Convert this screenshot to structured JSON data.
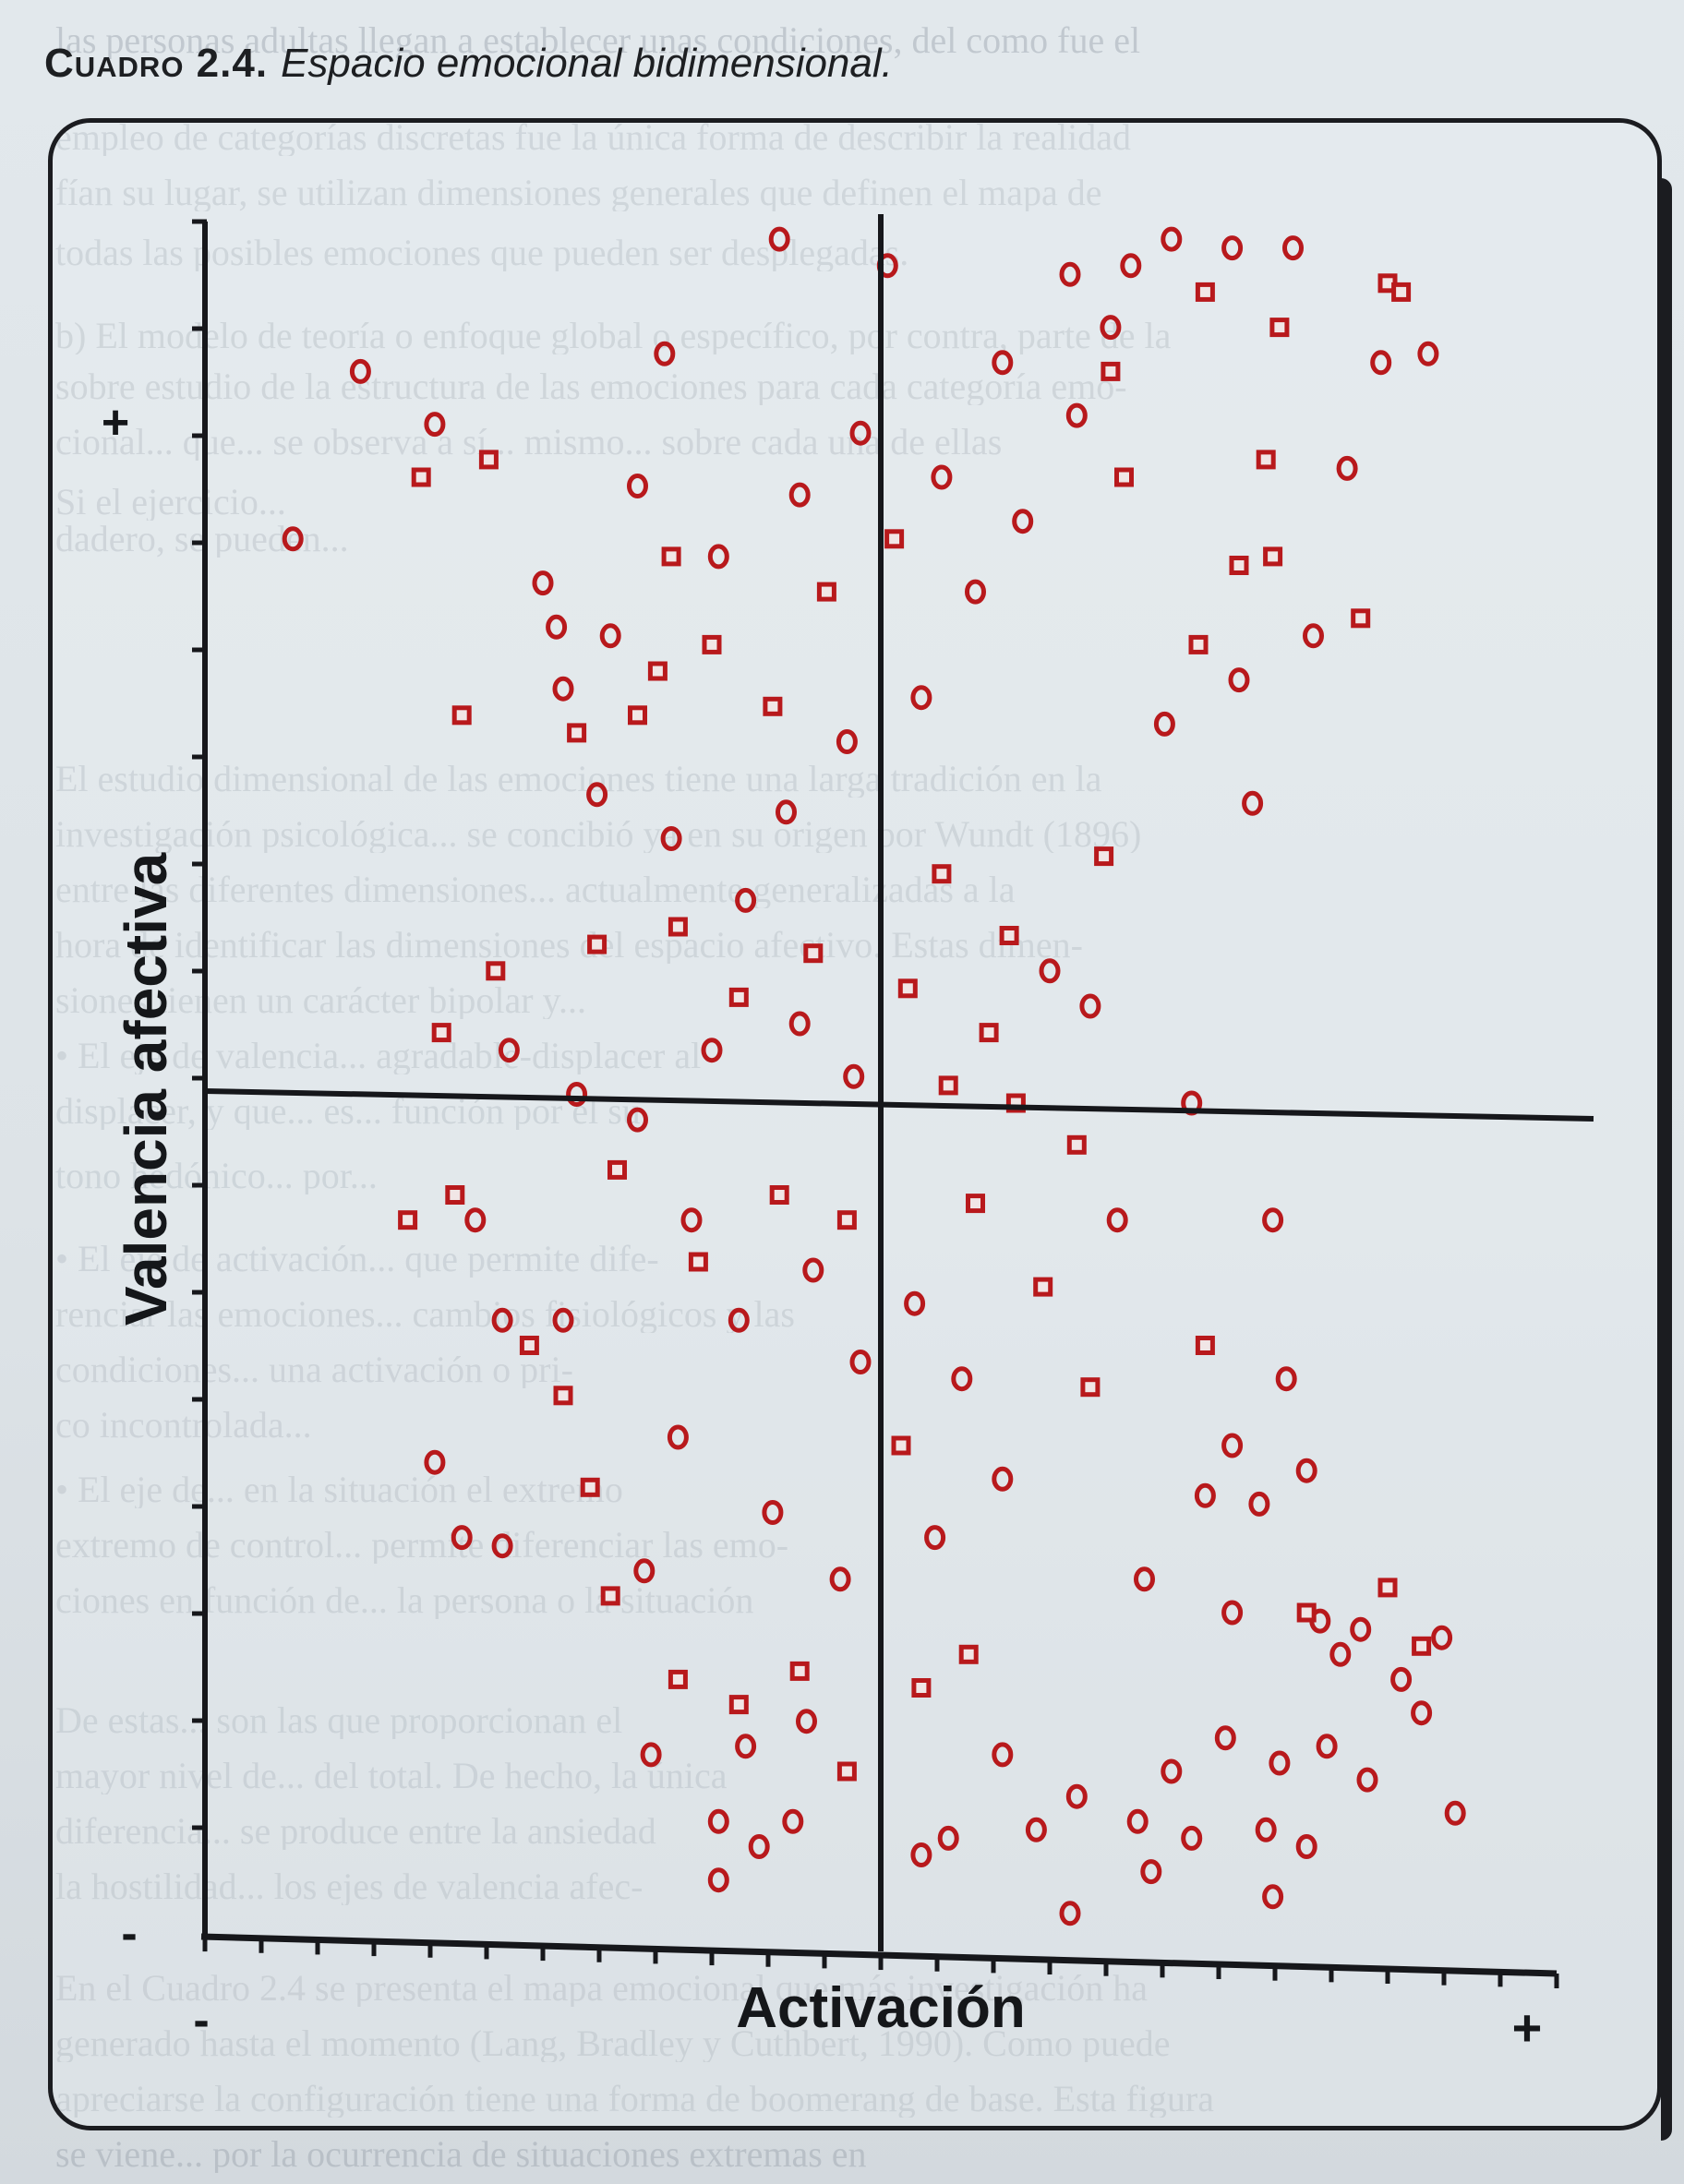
{
  "caption": {
    "label": "Cuadro 2.4.",
    "title": "Espacio emocional bidimensional."
  },
  "chart_data": {
    "type": "scatter",
    "title": "Espacio emocional bidimensional.",
    "xlabel": "Activación",
    "ylabel": "Valencia afectiva",
    "x_axis_end_labels": {
      "low": "-",
      "high": "+"
    },
    "y_axis_end_labels": {
      "low": "-",
      "high": "+"
    },
    "xlim": [
      -1,
      1
    ],
    "ylim": [
      -1,
      1
    ],
    "grid": false,
    "marker_color": "#b8191c",
    "series": [
      {
        "name": "circle",
        "marker": "circle",
        "points": [
          [
            -0.15,
            0.98
          ],
          [
            0.01,
            0.95
          ],
          [
            0.28,
            0.94
          ],
          [
            0.37,
            0.95
          ],
          [
            0.43,
            0.98
          ],
          [
            0.52,
            0.97
          ],
          [
            0.61,
            0.97
          ],
          [
            -0.77,
            0.83
          ],
          [
            -0.32,
            0.85
          ],
          [
            0.74,
            0.84
          ],
          [
            0.81,
            0.85
          ],
          [
            -0.66,
            0.77
          ],
          [
            0.69,
            0.72
          ],
          [
            -0.87,
            0.64
          ],
          [
            -0.5,
            0.59
          ],
          [
            -0.48,
            0.54
          ],
          [
            -0.4,
            0.53
          ],
          [
            0.64,
            0.53
          ],
          [
            -0.47,
            0.47
          ],
          [
            -0.42,
            0.35
          ],
          [
            0.53,
            0.48
          ],
          [
            0.55,
            0.34
          ],
          [
            0.42,
            0.43
          ],
          [
            0.25,
            0.15
          ],
          [
            0.31,
            0.11
          ],
          [
            -0.55,
            0.06
          ],
          [
            -0.45,
            0.01
          ],
          [
            0.46,
            0.0
          ],
          [
            -0.6,
            -0.14
          ],
          [
            0.35,
            -0.14
          ],
          [
            0.58,
            -0.14
          ],
          [
            -0.47,
            -0.26
          ],
          [
            -0.56,
            -0.26
          ],
          [
            -0.66,
            -0.43
          ],
          [
            0.52,
            -0.41
          ],
          [
            0.63,
            -0.44
          ],
          [
            0.6,
            -0.33
          ],
          [
            -0.62,
            -0.52
          ],
          [
            -0.56,
            -0.53
          ],
          [
            0.48,
            -0.47
          ],
          [
            0.56,
            -0.48
          ],
          [
            -0.35,
            -0.56
          ],
          [
            0.39,
            -0.57
          ],
          [
            0.52,
            -0.61
          ],
          [
            0.65,
            -0.62
          ],
          [
            0.71,
            -0.63
          ],
          [
            0.83,
            -0.64
          ],
          [
            0.68,
            -0.66
          ],
          [
            0.77,
            -0.69
          ],
          [
            0.8,
            -0.73
          ],
          [
            -0.34,
            -0.78
          ],
          [
            -0.11,
            -0.74
          ],
          [
            -0.2,
            -0.77
          ],
          [
            0.18,
            -0.78
          ],
          [
            0.29,
            -0.83
          ],
          [
            0.43,
            -0.8
          ],
          [
            0.51,
            -0.76
          ],
          [
            0.59,
            -0.79
          ],
          [
            0.66,
            -0.77
          ],
          [
            0.72,
            -0.81
          ],
          [
            -0.24,
            -0.86
          ],
          [
            -0.18,
            -0.89
          ],
          [
            -0.13,
            -0.86
          ],
          [
            0.1,
            -0.88
          ],
          [
            0.23,
            -0.87
          ],
          [
            0.38,
            -0.86
          ],
          [
            0.46,
            -0.88
          ],
          [
            0.57,
            -0.87
          ],
          [
            0.63,
            -0.89
          ],
          [
            0.85,
            -0.85
          ],
          [
            0.4,
            -0.92
          ],
          [
            0.06,
            -0.9
          ],
          [
            0.58,
            -0.95
          ],
          [
            0.28,
            -0.97
          ],
          [
            -0.24,
            -0.93
          ],
          [
            -0.3,
            -0.4
          ],
          [
            -0.21,
            -0.26
          ],
          [
            -0.1,
            -0.2
          ],
          [
            -0.03,
            -0.31
          ],
          [
            0.05,
            -0.24
          ],
          [
            0.12,
            -0.33
          ],
          [
            0.18,
            -0.45
          ],
          [
            0.08,
            -0.52
          ],
          [
            -0.06,
            -0.57
          ],
          [
            -0.16,
            -0.49
          ],
          [
            -0.28,
            -0.14
          ],
          [
            -0.36,
            -0.02
          ],
          [
            -0.25,
            0.06
          ],
          [
            -0.12,
            0.09
          ],
          [
            -0.04,
            0.03
          ],
          [
            -0.2,
            0.23
          ],
          [
            -0.31,
            0.3
          ],
          [
            -0.14,
            0.33
          ],
          [
            -0.05,
            0.41
          ],
          [
            0.06,
            0.46
          ],
          [
            0.14,
            0.58
          ],
          [
            0.21,
            0.66
          ],
          [
            0.09,
            0.71
          ],
          [
            -0.03,
            0.76
          ],
          [
            -0.12,
            0.69
          ],
          [
            -0.24,
            0.62
          ],
          [
            -0.36,
            0.7
          ],
          [
            0.29,
            0.78
          ],
          [
            0.18,
            0.84
          ],
          [
            0.34,
            0.88
          ]
        ]
      },
      {
        "name": "square",
        "marker": "square",
        "points": [
          [
            -0.31,
            0.62
          ],
          [
            -0.33,
            0.49
          ],
          [
            -0.45,
            0.42
          ],
          [
            -0.58,
            0.73
          ],
          [
            -0.68,
            0.71
          ],
          [
            -0.62,
            0.44
          ],
          [
            -0.57,
            0.15
          ],
          [
            -0.65,
            0.08
          ],
          [
            -0.63,
            -0.11
          ],
          [
            -0.7,
            -0.14
          ],
          [
            -0.52,
            -0.29
          ],
          [
            -0.47,
            -0.35
          ],
          [
            -0.43,
            -0.46
          ],
          [
            -0.4,
            -0.59
          ],
          [
            -0.3,
            -0.69
          ],
          [
            0.34,
            0.83
          ],
          [
            0.48,
            0.92
          ],
          [
            0.59,
            0.88
          ],
          [
            0.75,
            0.93
          ],
          [
            0.77,
            0.92
          ],
          [
            0.57,
            0.73
          ],
          [
            0.58,
            0.62
          ],
          [
            0.53,
            0.61
          ],
          [
            0.36,
            0.71
          ],
          [
            0.47,
            0.52
          ],
          [
            0.71,
            0.55
          ],
          [
            0.33,
            0.28
          ],
          [
            0.09,
            0.26
          ],
          [
            0.19,
            0.19
          ],
          [
            0.16,
            0.08
          ],
          [
            0.1,
            0.02
          ],
          [
            0.2,
            0.0
          ],
          [
            0.29,
            -0.05
          ],
          [
            0.14,
            -0.12
          ],
          [
            0.24,
            -0.22
          ],
          [
            0.31,
            -0.34
          ],
          [
            0.48,
            -0.29
          ],
          [
            0.63,
            -0.61
          ],
          [
            0.75,
            -0.58
          ],
          [
            0.8,
            -0.65
          ],
          [
            -0.21,
            -0.72
          ],
          [
            -0.12,
            -0.68
          ],
          [
            -0.05,
            -0.8
          ],
          [
            0.06,
            -0.7
          ],
          [
            0.13,
            -0.66
          ],
          [
            -0.36,
            0.44
          ],
          [
            -0.25,
            0.52
          ],
          [
            -0.16,
            0.45
          ],
          [
            -0.08,
            0.58
          ],
          [
            0.02,
            0.64
          ],
          [
            -0.42,
            0.18
          ],
          [
            -0.3,
            0.2
          ],
          [
            -0.21,
            0.12
          ],
          [
            -0.1,
            0.17
          ],
          [
            0.04,
            0.13
          ],
          [
            -0.39,
            -0.08
          ],
          [
            -0.27,
            -0.19
          ],
          [
            -0.15,
            -0.11
          ],
          [
            -0.05,
            -0.14
          ],
          [
            0.03,
            -0.41
          ]
        ]
      }
    ]
  },
  "background_text": [
    "las personas adultas llegan a establecer unas condiciones, del como fue el",
    "empleo de categorías discretas fue la única forma de describir la realidad",
    "fían su lugar, se utilizan dimensiones generales que definen el mapa de",
    "todas las posibles emociones que pueden ser desplegadas.",
    "b) El modelo de teoría o enfoque global o específico, por contra, parte de la",
    "sobre estudio de la estructura de las emociones para cada categoría emo-",
    "cional... que... se observa a sí... mismo... sobre cada una de ellas",
    "Si el ejercicio...",
    "dadero, se pueden...",
    "El estudio dimensional de las emociones tiene una larga tradición en la",
    "investigación psicológica... se concibió ya en su origen por Wundt (1896)",
    "entre las diferentes dimensiones... actualmente generalizadas a la",
    "hora de identificar las dimensiones del espacio afectivo. Estas dimen-",
    "siones tienen un carácter bipolar y...",
    "• El eje de valencia... agradable-displacer al",
    "displacer, y que... es... función por el su",
    "tono hedónico... por...",
    "• El eje de activación... que permite dife-",
    "renciar las emociones... cambios fisiológicos y las",
    "condiciones... una activación o pri-",
    "co incontrolada...",
    "• El eje de... en la situación el extremo",
    "extremo de control... permite diferenciar las emo-",
    "ciones en función de... la persona o la situación",
    "De estas... son las que proporcionan el",
    "mayor nivel de... del total. De hecho, la única",
    "diferencia... se produce entre la ansiedad",
    "la hostilidad... los ejes de valencia afec-",
    "En el Cuadro 2.4 se presenta el mapa emocional que más investigación ha",
    "generado hasta el momento (Lang, Bradley y Cuthbert, 1990). Como puede",
    "apreciarse la configuración tiene una forma de boomerang de base. Esta figura",
    "se viene... por la ocurrencia de situaciones extremas en"
  ]
}
